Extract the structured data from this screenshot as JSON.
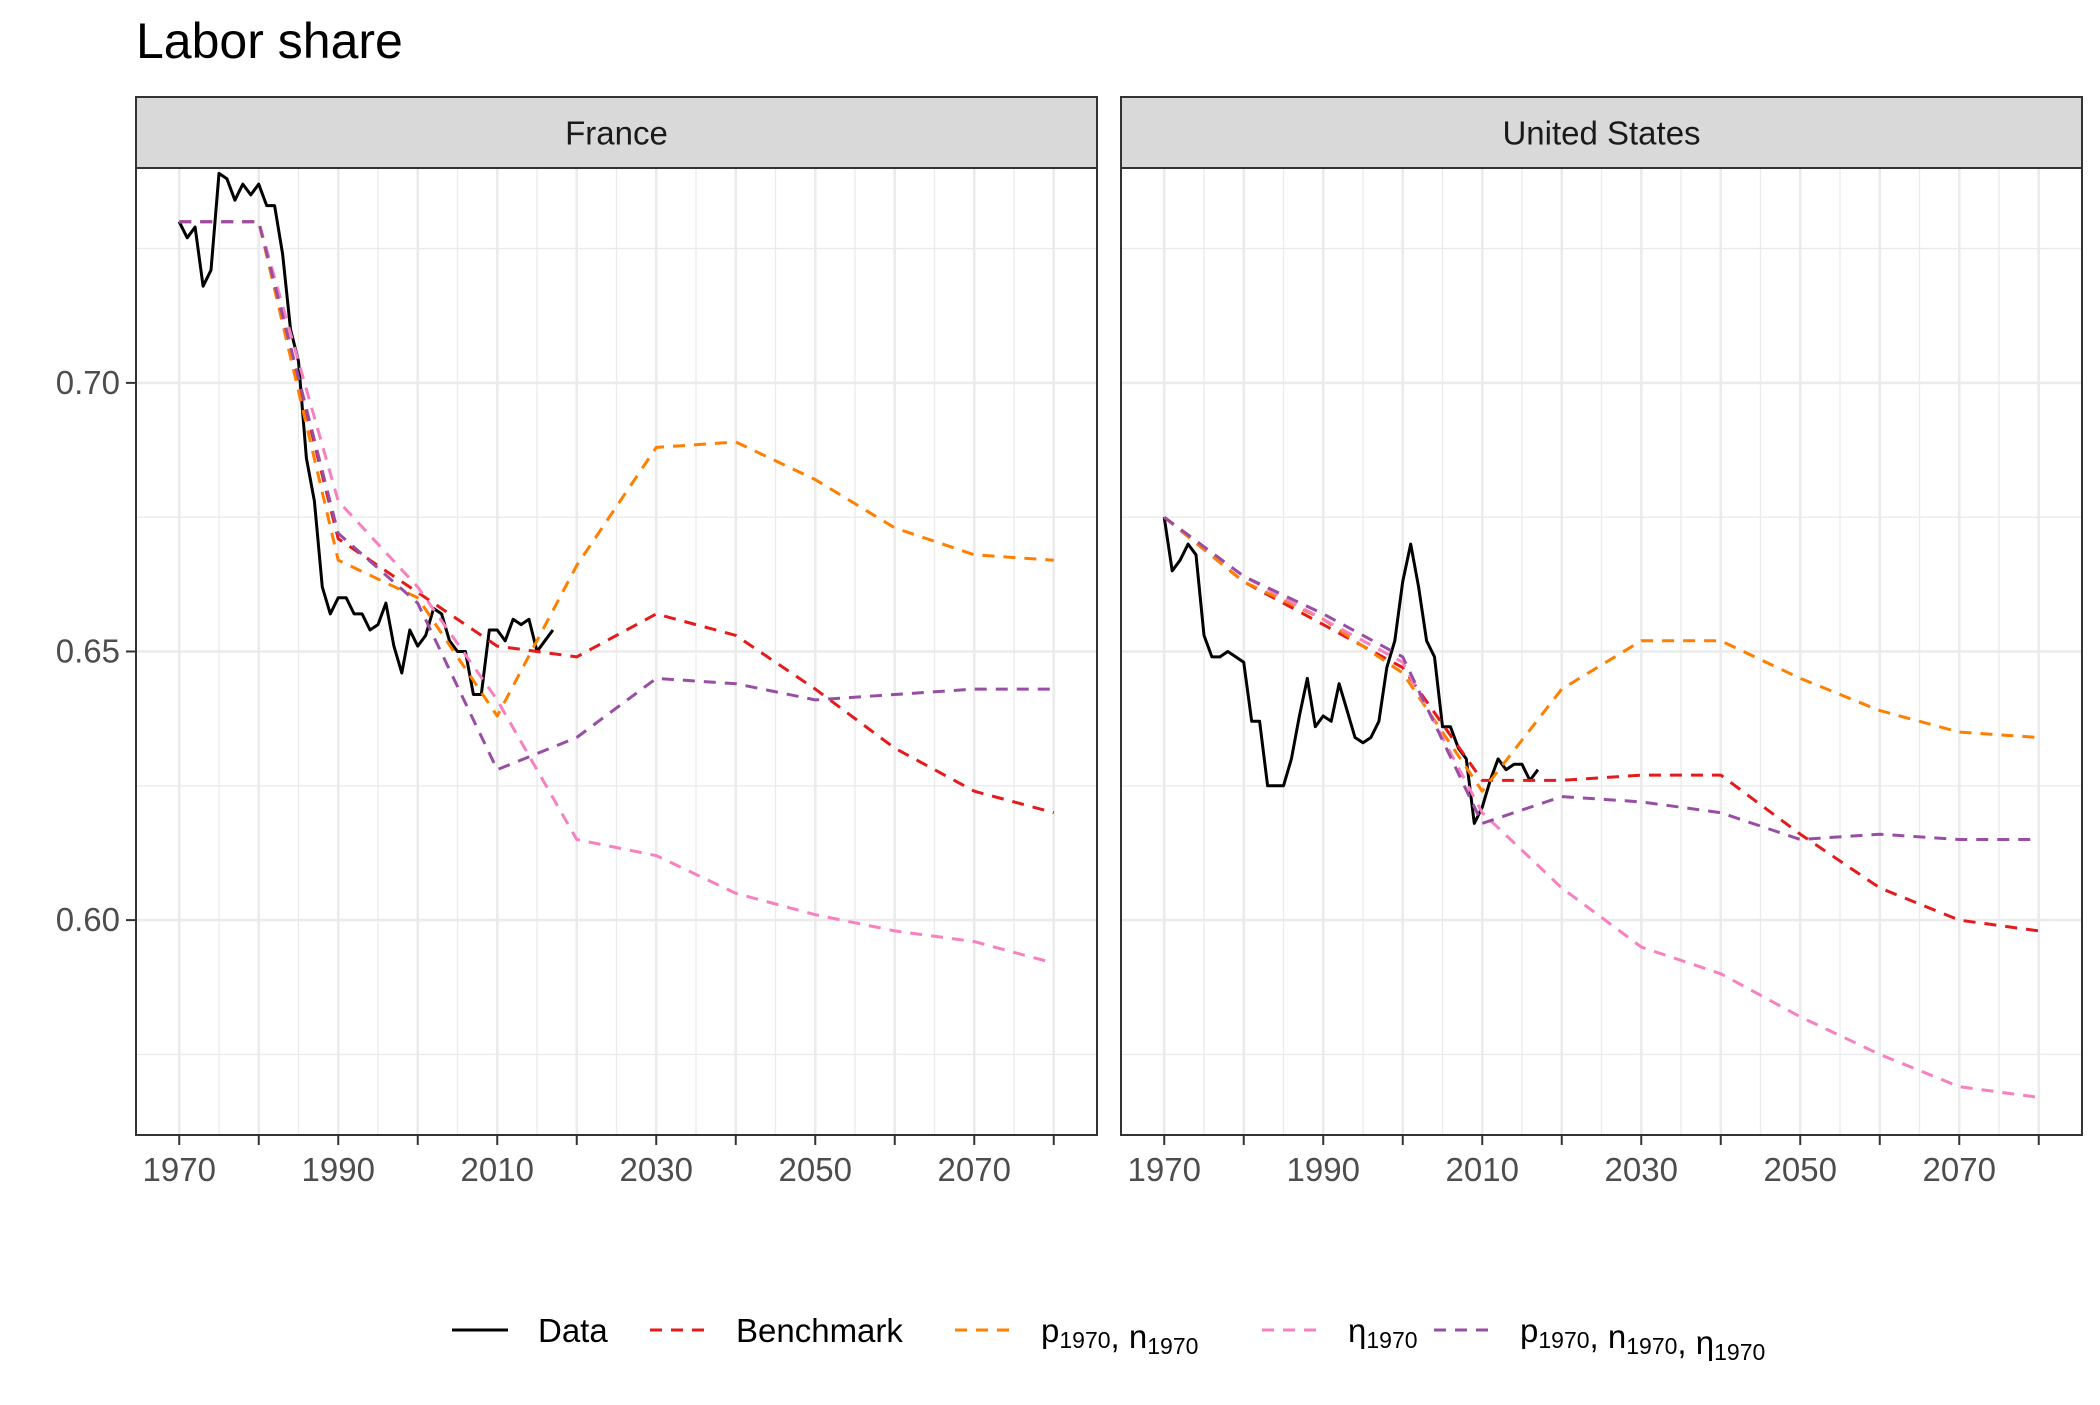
{
  "figure": {
    "title": "Labor share"
  },
  "colors": {
    "data": "#000000",
    "benchmark": "#e41a1c",
    "p_n": "#ff7f00",
    "eta": "#f781bf",
    "p_n_eta": "#984ea3",
    "strip_bg": "#d9d9d9",
    "grid": "#ebebeb"
  },
  "legend": {
    "items": [
      {
        "key": "data",
        "label": "Data",
        "dashed": false
      },
      {
        "key": "benchmark",
        "label": "Benchmark",
        "dashed": true
      },
      {
        "key": "p_n",
        "label": "p1970, n1970",
        "dashed": true,
        "parts": [
          [
            "p",
            "1970"
          ],
          [
            ", n",
            "1970"
          ]
        ]
      },
      {
        "key": "eta",
        "label": "η1970",
        "dashed": true,
        "parts": [
          [
            "η",
            "1970"
          ]
        ]
      },
      {
        "key": "p_n_eta",
        "label": "p1970, n1970, η1970",
        "dashed": true,
        "parts": [
          [
            "p",
            "1970"
          ],
          [
            ", n",
            "1970"
          ],
          [
            ", η",
            "1970"
          ]
        ]
      }
    ]
  },
  "chart_data": [
    {
      "type": "line",
      "title": "Labor share",
      "panel": "France",
      "xlabel": "",
      "ylabel": "",
      "xlim": [
        1970,
        2080
      ],
      "ylim": [
        0.56,
        0.74
      ],
      "x_ticks": [
        1970,
        1990,
        2010,
        2030,
        2050,
        2070
      ],
      "y_ticks": [
        0.6,
        0.65,
        0.7
      ],
      "grid": true,
      "legend_position": "bottom",
      "series": [
        {
          "name": "Data",
          "key": "data",
          "dashed": false,
          "points": [
            [
              1970,
              0.73
            ],
            [
              1971,
              0.727
            ],
            [
              1972,
              0.729
            ],
            [
              1973,
              0.718
            ],
            [
              1974,
              0.721
            ],
            [
              1975,
              0.739
            ],
            [
              1976,
              0.738
            ],
            [
              1977,
              0.734
            ],
            [
              1978,
              0.737
            ],
            [
              1979,
              0.735
            ],
            [
              1980,
              0.737
            ],
            [
              1981,
              0.733
            ],
            [
              1982,
              0.733
            ],
            [
              1983,
              0.724
            ],
            [
              1984,
              0.71
            ],
            [
              1985,
              0.704
            ],
            [
              1986,
              0.686
            ],
            [
              1987,
              0.678
            ],
            [
              1988,
              0.662
            ],
            [
              1989,
              0.657
            ],
            [
              1990,
              0.66
            ],
            [
              1991,
              0.66
            ],
            [
              1992,
              0.657
            ],
            [
              1993,
              0.657
            ],
            [
              1994,
              0.654
            ],
            [
              1995,
              0.655
            ],
            [
              1996,
              0.659
            ],
            [
              1997,
              0.651
            ],
            [
              1998,
              0.646
            ],
            [
              1999,
              0.654
            ],
            [
              2000,
              0.651
            ],
            [
              2001,
              0.653
            ],
            [
              2002,
              0.658
            ],
            [
              2003,
              0.657
            ],
            [
              2004,
              0.652
            ],
            [
              2005,
              0.65
            ],
            [
              2006,
              0.65
            ],
            [
              2007,
              0.642
            ],
            [
              2008,
              0.642
            ],
            [
              2009,
              0.654
            ],
            [
              2010,
              0.654
            ],
            [
              2011,
              0.652
            ],
            [
              2012,
              0.656
            ],
            [
              2013,
              0.655
            ],
            [
              2014,
              0.656
            ],
            [
              2015,
              0.65
            ],
            [
              2016,
              0.652
            ],
            [
              2017,
              0.654
            ]
          ]
        },
        {
          "name": "Benchmark",
          "key": "benchmark",
          "dashed": true,
          "points": [
            [
              1970,
              0.73
            ],
            [
              1980,
              0.73
            ],
            [
              1990,
              0.671
            ],
            [
              2000,
              0.661
            ],
            [
              2010,
              0.651
            ],
            [
              2020,
              0.649
            ],
            [
              2030,
              0.657
            ],
            [
              2040,
              0.653
            ],
            [
              2050,
              0.643
            ],
            [
              2060,
              0.632
            ],
            [
              2070,
              0.624
            ],
            [
              2080,
              0.62
            ]
          ]
        },
        {
          "name": "p1970, n1970",
          "key": "p_n",
          "dashed": true,
          "points": [
            [
              1970,
              0.73
            ],
            [
              1980,
              0.73
            ],
            [
              1990,
              0.667
            ],
            [
              2000,
              0.66
            ],
            [
              2010,
              0.638
            ],
            [
              2020,
              0.666
            ],
            [
              2030,
              0.688
            ],
            [
              2040,
              0.689
            ],
            [
              2050,
              0.682
            ],
            [
              2060,
              0.673
            ],
            [
              2070,
              0.668
            ],
            [
              2080,
              0.667
            ]
          ]
        },
        {
          "name": "η1970",
          "key": "eta",
          "dashed": true,
          "points": [
            [
              1970,
              0.73
            ],
            [
              1980,
              0.73
            ],
            [
              1990,
              0.678
            ],
            [
              2000,
              0.662
            ],
            [
              2010,
              0.641
            ],
            [
              2020,
              0.615
            ],
            [
              2030,
              0.612
            ],
            [
              2040,
              0.605
            ],
            [
              2050,
              0.601
            ],
            [
              2060,
              0.598
            ],
            [
              2070,
              0.596
            ],
            [
              2080,
              0.592
            ]
          ]
        },
        {
          "name": "p1970, n1970, η1970",
          "key": "p_n_eta",
          "dashed": true,
          "points": [
            [
              1970,
              0.73
            ],
            [
              1980,
              0.73
            ],
            [
              1990,
              0.672
            ],
            [
              2000,
              0.659
            ],
            [
              2010,
              0.628
            ],
            [
              2020,
              0.634
            ],
            [
              2030,
              0.645
            ],
            [
              2040,
              0.644
            ],
            [
              2050,
              0.641
            ],
            [
              2060,
              0.642
            ],
            [
              2070,
              0.643
            ],
            [
              2080,
              0.643
            ]
          ]
        }
      ]
    },
    {
      "type": "line",
      "title": "Labor share",
      "panel": "United States",
      "xlabel": "",
      "ylabel": "",
      "xlim": [
        1970,
        2080
      ],
      "ylim": [
        0.56,
        0.74
      ],
      "x_ticks": [
        1970,
        1990,
        2010,
        2030,
        2050,
        2070
      ],
      "y_ticks": [
        0.6,
        0.65,
        0.7
      ],
      "grid": true,
      "legend_position": "bottom",
      "series": [
        {
          "name": "Data",
          "key": "data",
          "dashed": false,
          "points": [
            [
              1970,
              0.675
            ],
            [
              1971,
              0.665
            ],
            [
              1972,
              0.667
            ],
            [
              1973,
              0.67
            ],
            [
              1974,
              0.668
            ],
            [
              1975,
              0.653
            ],
            [
              1976,
              0.649
            ],
            [
              1977,
              0.649
            ],
            [
              1978,
              0.65
            ],
            [
              1979,
              0.649
            ],
            [
              1980,
              0.648
            ],
            [
              1981,
              0.637
            ],
            [
              1982,
              0.637
            ],
            [
              1983,
              0.625
            ],
            [
              1984,
              0.625
            ],
            [
              1985,
              0.625
            ],
            [
              1986,
              0.63
            ],
            [
              1987,
              0.638
            ],
            [
              1988,
              0.645
            ],
            [
              1989,
              0.636
            ],
            [
              1990,
              0.638
            ],
            [
              1991,
              0.637
            ],
            [
              1992,
              0.644
            ],
            [
              1993,
              0.639
            ],
            [
              1994,
              0.634
            ],
            [
              1995,
              0.633
            ],
            [
              1996,
              0.634
            ],
            [
              1997,
              0.637
            ],
            [
              1998,
              0.647
            ],
            [
              1999,
              0.652
            ],
            [
              2000,
              0.663
            ],
            [
              2001,
              0.67
            ],
            [
              2002,
              0.662
            ],
            [
              2003,
              0.652
            ],
            [
              2004,
              0.649
            ],
            [
              2005,
              0.636
            ],
            [
              2006,
              0.636
            ],
            [
              2007,
              0.632
            ],
            [
              2008,
              0.63
            ],
            [
              2009,
              0.618
            ],
            [
              2010,
              0.621
            ],
            [
              2011,
              0.626
            ],
            [
              2012,
              0.63
            ],
            [
              2013,
              0.628
            ],
            [
              2014,
              0.629
            ],
            [
              2015,
              0.629
            ],
            [
              2016,
              0.626
            ],
            [
              2017,
              0.628
            ]
          ]
        },
        {
          "name": "Benchmark",
          "key": "benchmark",
          "dashed": true,
          "points": [
            [
              1970,
              0.675
            ],
            [
              1980,
              0.663
            ],
            [
              1990,
              0.655
            ],
            [
              2000,
              0.647
            ],
            [
              2010,
              0.626
            ],
            [
              2020,
              0.626
            ],
            [
              2030,
              0.627
            ],
            [
              2040,
              0.627
            ],
            [
              2050,
              0.616
            ],
            [
              2060,
              0.606
            ],
            [
              2070,
              0.6
            ],
            [
              2080,
              0.598
            ]
          ]
        },
        {
          "name": "p1970, n1970",
          "key": "p_n",
          "dashed": true,
          "points": [
            [
              1970,
              0.675
            ],
            [
              1980,
              0.663
            ],
            [
              1990,
              0.656
            ],
            [
              2000,
              0.646
            ],
            [
              2010,
              0.624
            ],
            [
              2020,
              0.643
            ],
            [
              2030,
              0.652
            ],
            [
              2040,
              0.652
            ],
            [
              2050,
              0.645
            ],
            [
              2060,
              0.639
            ],
            [
              2070,
              0.635
            ],
            [
              2080,
              0.634
            ]
          ]
        },
        {
          "name": "η1970",
          "key": "eta",
          "dashed": true,
          "points": [
            [
              1970,
              0.675
            ],
            [
              1980,
              0.664
            ],
            [
              1990,
              0.656
            ],
            [
              2000,
              0.648
            ],
            [
              2010,
              0.62
            ],
            [
              2020,
              0.606
            ],
            [
              2030,
              0.595
            ],
            [
              2040,
              0.59
            ],
            [
              2050,
              0.582
            ],
            [
              2060,
              0.575
            ],
            [
              2070,
              0.569
            ],
            [
              2080,
              0.567
            ]
          ]
        },
        {
          "name": "p1970, n1970, η1970",
          "key": "p_n_eta",
          "dashed": true,
          "points": [
            [
              1970,
              0.675
            ],
            [
              1980,
              0.664
            ],
            [
              1990,
              0.657
            ],
            [
              2000,
              0.649
            ],
            [
              2010,
              0.618
            ],
            [
              2020,
              0.623
            ],
            [
              2030,
              0.622
            ],
            [
              2040,
              0.62
            ],
            [
              2050,
              0.615
            ],
            [
              2060,
              0.616
            ],
            [
              2070,
              0.615
            ],
            [
              2080,
              0.615
            ]
          ]
        }
      ]
    }
  ]
}
